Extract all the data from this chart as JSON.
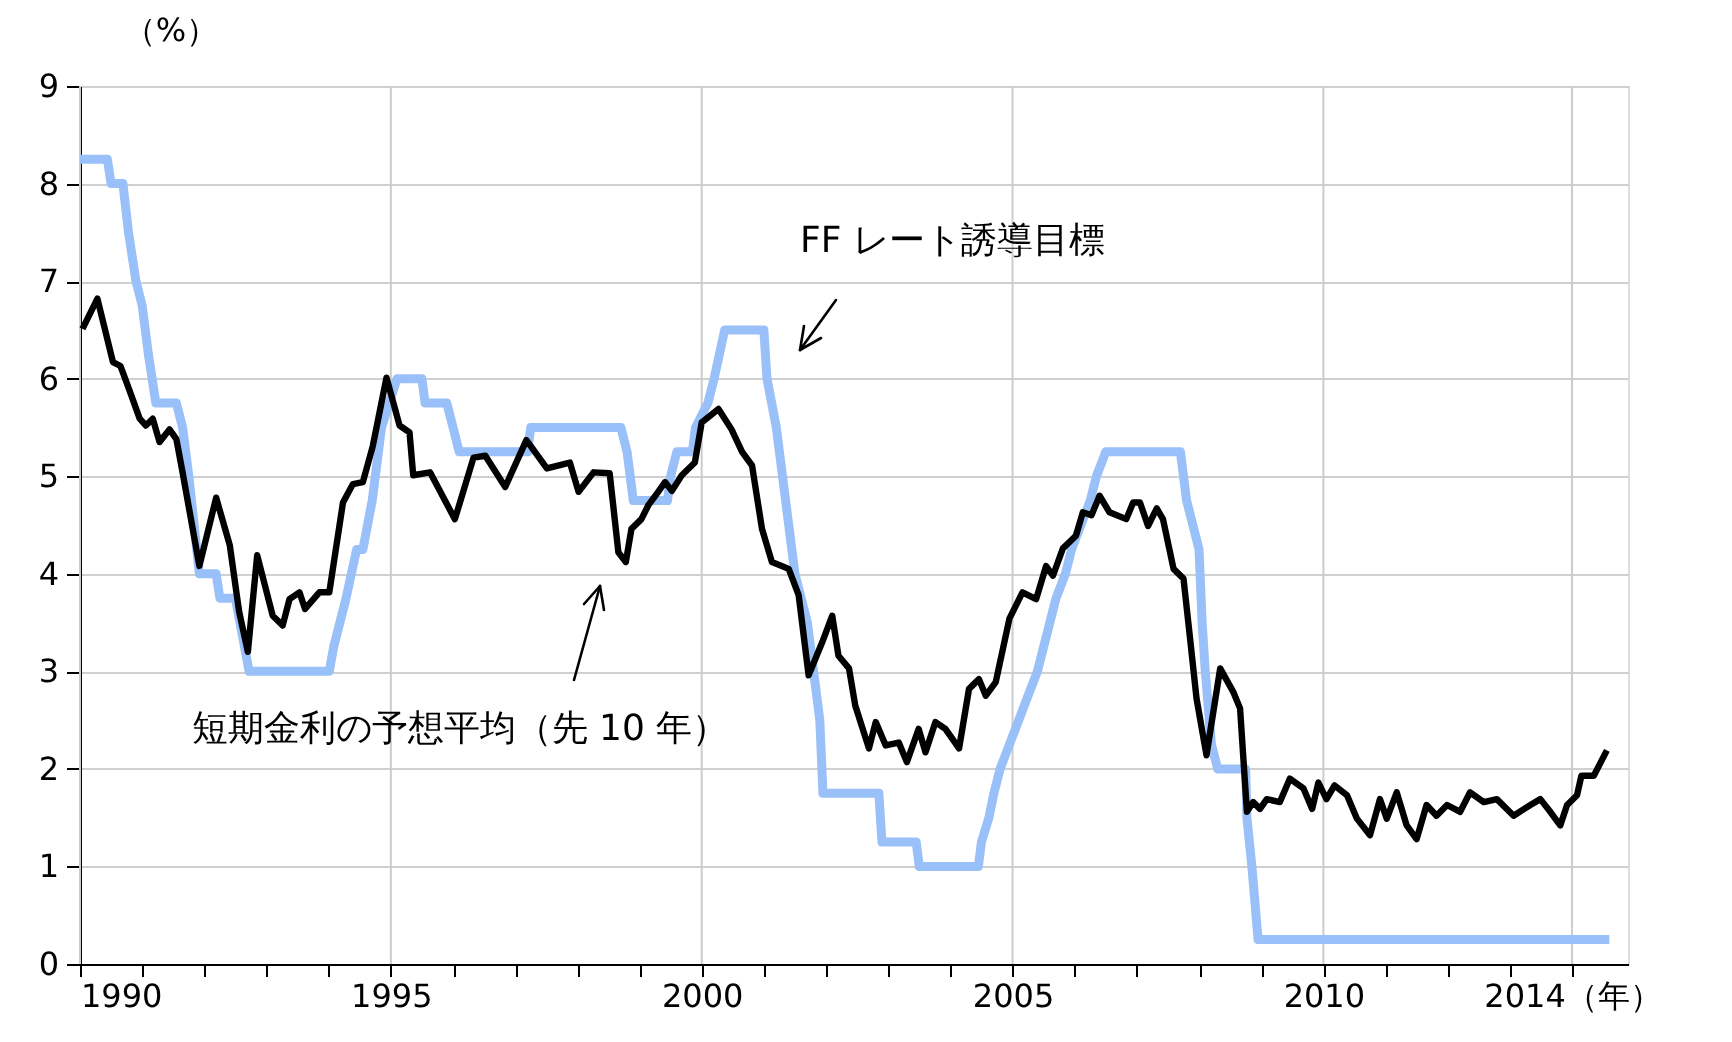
{
  "chart_data": {
    "type": "line",
    "xlim": [
      1990,
      2014.9
    ],
    "xticks": [
      1990,
      {
        "value": 1991,
        "label": null
      },
      {
        "value": 1992,
        "label": null
      },
      {
        "value": 1993,
        "label": null
      },
      {
        "value": 1994,
        "label": null
      },
      1995,
      {
        "value": 1996,
        "label": null
      },
      {
        "value": 1997,
        "label": null
      },
      {
        "value": 1998,
        "label": null
      },
      {
        "value": 1999,
        "label": null
      },
      2000,
      {
        "value": 2001,
        "label": null
      },
      {
        "value": 2002,
        "label": null
      },
      {
        "value": 2003,
        "label": null
      },
      {
        "value": 2004,
        "label": null
      },
      2005,
      {
        "value": 2006,
        "label": null
      },
      {
        "value": 2007,
        "label": null
      },
      {
        "value": 2008,
        "label": null
      },
      {
        "value": 2009,
        "label": null
      },
      2010,
      {
        "value": 2011,
        "label": null
      },
      {
        "value": 2012,
        "label": null
      },
      {
        "value": 2013,
        "label": null
      },
      {
        "value": 2014,
        "label": "2014（年）"
      }
    ],
    "ylim": [
      0,
      9
    ],
    "yticks": [
      0,
      1,
      2,
      3,
      4,
      5,
      6,
      7,
      8,
      9
    ],
    "ylabel": "（%）",
    "grid": true,
    "line_style": "solid",
    "marker": "none",
    "series": [
      {
        "color": "#99c0f8",
        "x": [
          1990.0,
          1990.44,
          1990.5,
          1990.69,
          1990.78,
          1990.9,
          1991.0,
          1991.1,
          1991.22,
          1991.55,
          1991.65,
          1991.75,
          1991.92,
          1992.19,
          1992.25,
          1992.5,
          1992.72,
          1994.01,
          1994.08,
          1994.18,
          1994.28,
          1994.45,
          1994.55,
          1994.7,
          1994.85,
          1995.1,
          1995.5,
          1995.55,
          1995.9,
          1996.0,
          1996.1,
          1997.2,
          1997.25,
          1998.7,
          1998.8,
          1998.9,
          1999.45,
          1999.5,
          1999.6,
          1999.85,
          1999.9,
          2000.1,
          2000.2,
          2000.37,
          2001.0,
          2001.05,
          2001.2,
          2001.3,
          2001.4,
          2001.5,
          2001.6,
          2001.7,
          2001.8,
          2001.9,
          2001.95,
          2002.85,
          2002.9,
          2003.45,
          2003.5,
          2004.45,
          2004.5,
          2004.62,
          2004.7,
          2004.8,
          2004.95,
          2005.1,
          2005.25,
          2005.4,
          2005.5,
          2005.6,
          2005.7,
          2005.85,
          2005.95,
          2006.1,
          2006.25,
          2006.35,
          2006.5,
          2007.7,
          2007.8,
          2007.9,
          2008.0,
          2008.05,
          2008.1,
          2008.2,
          2008.3,
          2008.75,
          2008.77,
          2008.85,
          2008.95,
          2014.6
        ],
        "values": [
          8.25,
          8.25,
          8.0,
          8.0,
          7.5,
          7.0,
          6.75,
          6.25,
          5.75,
          5.75,
          5.5,
          5.0,
          4.0,
          4.0,
          3.75,
          3.75,
          3.0,
          3.0,
          3.25,
          3.5,
          3.75,
          4.25,
          4.25,
          4.75,
          5.5,
          6.0,
          6.0,
          5.75,
          5.75,
          5.5,
          5.25,
          5.25,
          5.5,
          5.5,
          5.25,
          4.75,
          4.75,
          5.0,
          5.25,
          5.25,
          5.5,
          5.75,
          6.0,
          6.5,
          6.5,
          6.0,
          5.5,
          5.0,
          4.5,
          4.0,
          3.75,
          3.5,
          3.0,
          2.5,
          1.75,
          1.75,
          1.25,
          1.25,
          1.0,
          1.0,
          1.25,
          1.5,
          1.75,
          2.0,
          2.25,
          2.5,
          2.75,
          3.0,
          3.25,
          3.5,
          3.75,
          4.0,
          4.25,
          4.5,
          4.75,
          5.0,
          5.25,
          5.25,
          4.75,
          4.5,
          4.25,
          3.5,
          3.0,
          2.25,
          2.0,
          2.0,
          1.5,
          1.0,
          0.25,
          0.25
        ]
      },
      {
        "color": "#000000",
        "x": [
          1990.04,
          1990.28,
          1990.53,
          1990.65,
          1990.79,
          1990.96,
          1991.06,
          1991.17,
          1991.28,
          1991.44,
          1991.55,
          1991.65,
          1991.92,
          1992.19,
          1992.41,
          1992.56,
          1992.7,
          1992.85,
          1993.1,
          1993.26,
          1993.37,
          1993.53,
          1993.62,
          1993.85,
          1994.01,
          1994.23,
          1994.39,
          1994.55,
          1994.71,
          1994.93,
          1995.14,
          1995.3,
          1995.36,
          1995.63,
          1996.03,
          1996.33,
          1996.52,
          1996.84,
          1997.18,
          1997.51,
          1997.88,
          1998.02,
          1998.26,
          1998.52,
          1998.66,
          1998.78,
          1998.87,
          1999.03,
          1999.14,
          1999.3,
          1999.41,
          1999.52,
          1999.68,
          1999.89,
          2000.0,
          2000.27,
          2000.48,
          2000.65,
          2000.81,
          2000.97,
          2001.13,
          2001.4,
          2001.56,
          2001.72,
          2001.94,
          2002.1,
          2002.2,
          2002.37,
          2002.47,
          2002.69,
          2002.8,
          2002.96,
          2003.17,
          2003.3,
          2003.49,
          2003.6,
          2003.76,
          2003.92,
          2004.14,
          2004.3,
          2004.46,
          2004.57,
          2004.73,
          2004.95,
          2005.16,
          2005.38,
          2005.54,
          2005.65,
          2005.81,
          2006.02,
          2006.13,
          2006.27,
          2006.4,
          2006.56,
          2006.83,
          2006.94,
          2007.05,
          2007.18,
          2007.32,
          2007.42,
          2007.59,
          2007.75,
          2007.85,
          2007.96,
          2008.12,
          2008.34,
          2008.55,
          2008.66,
          2008.77,
          2008.87,
          2008.98,
          2009.09,
          2009.3,
          2009.46,
          2009.68,
          2009.82,
          2009.92,
          2010.05,
          2010.18,
          2010.38,
          2010.54,
          2010.75,
          2010.91,
          2011.02,
          2011.18,
          2011.34,
          2011.5,
          2011.66,
          2011.82,
          2011.99,
          2012.2,
          2012.36,
          2012.58,
          2012.79,
          2013.06,
          2013.33,
          2013.49,
          2013.65,
          2013.81,
          2013.92,
          2014.08,
          2014.15,
          2014.35,
          2014.56
        ],
        "values": [
          6.51,
          6.82,
          6.17,
          6.13,
          5.89,
          5.59,
          5.52,
          5.59,
          5.35,
          5.48,
          5.38,
          5.04,
          4.08,
          4.78,
          4.29,
          3.61,
          3.2,
          4.19,
          3.57,
          3.47,
          3.74,
          3.81,
          3.64,
          3.81,
          3.81,
          4.73,
          4.92,
          4.94,
          5.31,
          6.01,
          5.52,
          5.45,
          5.01,
          5.04,
          4.56,
          5.19,
          5.21,
          4.89,
          5.37,
          5.08,
          5.14,
          4.84,
          5.04,
          5.03,
          4.22,
          4.12,
          4.46,
          4.56,
          4.7,
          4.84,
          4.94,
          4.85,
          5.01,
          5.14,
          5.55,
          5.69,
          5.48,
          5.25,
          5.11,
          4.46,
          4.12,
          4.05,
          3.78,
          2.96,
          3.3,
          3.57,
          3.16,
          3.03,
          2.65,
          2.21,
          2.48,
          2.24,
          2.27,
          2.07,
          2.41,
          2.17,
          2.48,
          2.41,
          2.21,
          2.82,
          2.92,
          2.75,
          2.89,
          3.54,
          3.81,
          3.74,
          4.08,
          3.98,
          4.26,
          4.39,
          4.63,
          4.6,
          4.8,
          4.63,
          4.56,
          4.73,
          4.73,
          4.49,
          4.67,
          4.56,
          4.05,
          3.95,
          3.37,
          2.72,
          2.14,
          3.03,
          2.79,
          2.62,
          1.56,
          1.66,
          1.59,
          1.69,
          1.66,
          1.9,
          1.8,
          1.59,
          1.86,
          1.69,
          1.83,
          1.73,
          1.49,
          1.32,
          1.69,
          1.49,
          1.76,
          1.42,
          1.28,
          1.63,
          1.52,
          1.63,
          1.56,
          1.76,
          1.66,
          1.69,
          1.52,
          1.63,
          1.69,
          1.56,
          1.42,
          1.63,
          1.73,
          1.93,
          1.93,
          2.19
        ]
      }
    ],
    "annotations": [
      "FF レート誘導目標",
      "短期金利の予想平均（先 10 年）"
    ]
  }
}
